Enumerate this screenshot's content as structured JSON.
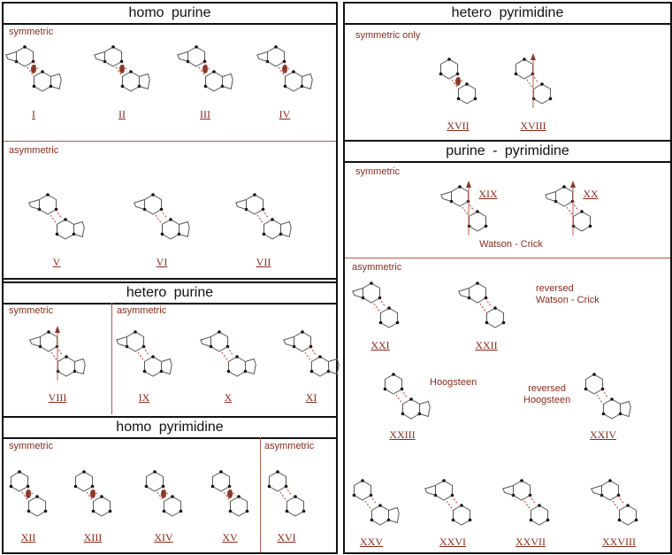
{
  "left": {
    "homo_purine": {
      "title": "homo purine",
      "symmetric": "symmetric",
      "asymmetric": "asymmetric",
      "pairs_sym": [
        "I",
        "II",
        "III",
        "IV"
      ],
      "pairs_asym": [
        "V",
        "VI",
        "VII"
      ]
    },
    "hetero_purine": {
      "title": "hetero purine",
      "symmetric": "symmetric",
      "asymmetric": "asymmetric",
      "pairs_sym": [
        "VIII"
      ],
      "pairs_asym": [
        "IX",
        "X",
        "XI"
      ]
    },
    "homo_pyrimidine": {
      "title": "homo pyrimidine",
      "symmetric": "symmetric",
      "asymmetric": "asymmetric",
      "pairs_sym": [
        "XII",
        "XIII",
        "XIV",
        "XV"
      ],
      "pairs_asym": [
        "XVI"
      ]
    }
  },
  "right": {
    "hetero_pyrimidine": {
      "title": "hetero pyrimidine",
      "symmetric_only": "symmetric only",
      "pairs": [
        "XVII",
        "XVIII"
      ]
    },
    "purine_pyrimidine": {
      "title": "purine - pyrimidine",
      "symmetric": "symmetric",
      "asymmetric": "asymmetric",
      "pairs_sym": [
        "XIX",
        "XX"
      ],
      "watson_crick": "Watson - Crick",
      "reversed_wc_1": "reversed",
      "reversed_wc_2": "Watson - Crick",
      "hoogsteen": "Hoogsteen",
      "reversed_h_1": "reversed",
      "reversed_h_2": "Hoogsteen",
      "pairs_asym": [
        "XXI",
        "XXII",
        "XXIII",
        "XXIV",
        "XXV",
        "XXVI",
        "XXVII",
        "XXVIII"
      ]
    }
  },
  "colors": {
    "text": "#8b2a1a",
    "hbond": "#c0392b",
    "bond": "#555555",
    "atom": "#111111"
  }
}
